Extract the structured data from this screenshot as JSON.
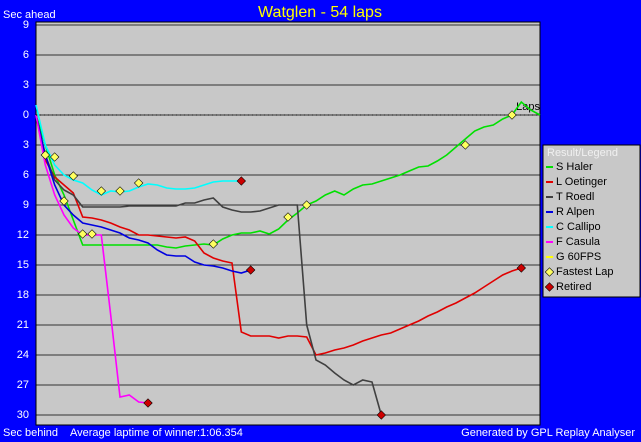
{
  "chart_data": {
    "type": "line",
    "title": "Watglen - 54 laps",
    "y_label_top": "Sec ahead",
    "y_label_bottom": "Sec behind",
    "x_label": "Laps",
    "footer_left": "Average laptime of winner:1:06.354",
    "footer_right": "Generated by GPL Replay Analyser",
    "legend_title": "Result/Legend",
    "xlim": [
      0,
      54
    ],
    "ylim": [
      -31,
      9.3
    ],
    "yticks": [
      9,
      6,
      3,
      0,
      {
        "value": -3,
        "label": "3"
      },
      {
        "value": -6,
        "label": "6"
      },
      {
        "value": -9,
        "label": "9"
      },
      {
        "value": -12,
        "label": "12"
      },
      {
        "value": -15,
        "label": "15"
      },
      {
        "value": -18,
        "label": "18"
      },
      {
        "value": -21,
        "label": "21"
      },
      {
        "value": -24,
        "label": "24"
      },
      {
        "value": -27,
        "label": "27"
      },
      {
        "value": -30,
        "label": "30"
      }
    ],
    "grid": true,
    "x": [
      0,
      1,
      2,
      3,
      4,
      5,
      6,
      7,
      8,
      9,
      10,
      11,
      12,
      13,
      14,
      15,
      16,
      17,
      18,
      19,
      20,
      21,
      22,
      23,
      24,
      25,
      26,
      27,
      28,
      29,
      30,
      31,
      32,
      33,
      34,
      35,
      36,
      37,
      38,
      39,
      40,
      41,
      42,
      43,
      44,
      45,
      46,
      47,
      48,
      49,
      50,
      51,
      52,
      53,
      54
    ],
    "series": [
      {
        "name": "S Haler",
        "color": "#00e000",
        "values": [
          0,
          -3,
          -6,
          -8,
          -10.5,
          -13,
          -13,
          -13,
          -13,
          -13,
          -13,
          -13,
          -13,
          -13,
          -13.2,
          -13.3,
          -13.1,
          -13,
          -12.9,
          -13,
          -12.4,
          -12,
          -11.8,
          -11.8,
          -11.6,
          -11.9,
          -11.4,
          -10.5,
          -9.8,
          -9,
          -8.6,
          -8,
          -7.6,
          -8,
          -7.4,
          -7,
          -6.9,
          -6.6,
          -6.3,
          -6,
          -5.6,
          -5.2,
          -5.1,
          -4.6,
          -4,
          -3.2,
          -2.4,
          -1.6,
          -1.2,
          -1,
          -0.4,
          0,
          1.3,
          0.5,
          0
        ]
      },
      {
        "name": "L Oetinger",
        "color": "#e00000",
        "values": [
          0,
          -4.5,
          -6.2,
          -7,
          -7.8,
          -10.2,
          -10.3,
          -10.5,
          -10.8,
          -11.2,
          -11.5,
          -12,
          -12,
          -12.1,
          -12.2,
          -12.3,
          -12.2,
          -12.6,
          -13.8,
          -14.3,
          -14.6,
          -14.8,
          -21.7,
          -22.1,
          -22.1,
          -22.1,
          -22.3,
          -22.1,
          -22.1,
          -22.2,
          -24,
          -23.8,
          -23.5,
          -23.3,
          -23,
          -22.6,
          -22.3,
          -22,
          -21.8,
          -21.4,
          -21,
          -20.6,
          -20.1,
          -19.7,
          -19.2,
          -18.8,
          -18.3,
          -17.8,
          -17.2,
          -16.6,
          -16,
          -15.6,
          -15.3,
          null,
          null
        ]
      },
      {
        "name": "T Roedl",
        "color": "#404040",
        "values": [
          0,
          -4,
          -6.5,
          -7.5,
          -8,
          -9.2,
          -9.2,
          -9.2,
          -9.2,
          -9.2,
          -9.1,
          -9.1,
          -9.1,
          -9.1,
          -9.1,
          -9.1,
          -8.8,
          -8.8,
          -8.5,
          -8.3,
          -9.2,
          -9.5,
          -9.7,
          -9.7,
          -9.6,
          -9.3,
          -9,
          -9,
          -9,
          -21,
          -24.5,
          -25,
          -25.8,
          -26.5,
          -27,
          -26.5,
          -26.7,
          -30,
          null,
          null,
          null,
          null,
          null,
          null,
          null,
          null,
          null,
          null,
          null,
          null,
          null,
          null,
          null,
          null,
          null
        ]
      },
      {
        "name": "R Alpen",
        "color": "#0000e0",
        "values": [
          0,
          -4,
          -7,
          -9,
          -10,
          -10.8,
          -11,
          -11.2,
          -11.5,
          -11.8,
          -12.3,
          -12.5,
          -12.8,
          -13.5,
          -14,
          -14.1,
          -14.1,
          -14.7,
          -15,
          -15.1,
          -15.3,
          -15.6,
          -15.8,
          -15.5,
          null,
          null,
          null,
          null,
          null,
          null,
          null,
          null,
          null,
          null,
          null,
          null,
          null,
          null,
          null,
          null,
          null,
          null,
          null,
          null,
          null,
          null,
          null,
          null,
          null,
          null,
          null,
          null,
          null,
          null,
          null
        ]
      },
      {
        "name": "C Callipo",
        "color": "#00ffff",
        "values": [
          1,
          -3,
          -5,
          -6,
          -6.5,
          -6.8,
          -7.5,
          -8,
          -7.6,
          -7.7,
          -7.6,
          -7.2,
          -6.9,
          -7,
          -7.3,
          -7.4,
          -7.4,
          -7.3,
          -7,
          -6.7,
          -6.6,
          -6.6,
          -6.6,
          null,
          null,
          null,
          null,
          null,
          null,
          null,
          null,
          null,
          null,
          null,
          null,
          null,
          null,
          null,
          null,
          null,
          null,
          null,
          null,
          null,
          null,
          null,
          null,
          null,
          null,
          null,
          null,
          null,
          null,
          null,
          null
        ]
      },
      {
        "name": "F Casula",
        "color": "#ff00ff",
        "values": [
          0,
          -5,
          -8,
          -10,
          -11.3,
          -12,
          -12,
          -12,
          -20,
          -28.2,
          -28,
          -28.7,
          -28.8,
          null,
          null,
          null,
          null,
          null,
          null,
          null,
          null,
          null,
          null,
          null,
          null,
          null,
          null,
          null,
          null,
          null,
          null,
          null,
          null,
          null,
          null,
          null,
          null,
          null,
          null,
          null,
          null,
          null,
          null,
          null,
          null,
          null,
          null,
          null,
          null,
          null,
          null,
          null,
          null,
          null,
          null
        ]
      },
      {
        "name": "G 60FPS",
        "color": "#ffff00",
        "values": [
          0,
          0,
          0,
          0,
          0,
          0,
          0,
          0,
          0,
          0,
          0,
          0,
          0,
          0,
          0,
          0,
          0,
          0,
          0,
          0,
          0,
          0,
          0,
          0,
          0,
          0,
          0,
          0,
          0,
          0,
          0,
          0,
          0,
          0,
          0,
          0,
          0,
          0,
          0,
          0,
          0,
          0,
          0,
          0,
          0,
          0,
          0,
          0,
          0,
          0,
          0,
          0,
          0,
          0,
          0
        ]
      }
    ],
    "fastest_laps": {
      "name": "Fastest Lap",
      "color": "#ffff60",
      "x": [
        1,
        2,
        3,
        4,
        5,
        6,
        7,
        9,
        11,
        19,
        27,
        29,
        46,
        51
      ],
      "y": [
        -4,
        -4.2,
        -8.6,
        -6.1,
        -11.9,
        -11.9,
        -7.6,
        -7.6,
        -6.8,
        -12.9,
        -10.2,
        -9,
        -3,
        0
      ]
    },
    "retired": {
      "name": "Retired",
      "color": "#cc0000",
      "x": [
        52,
        37,
        23,
        22,
        12
      ],
      "y": [
        -15.3,
        -30,
        -15.5,
        -6.6,
        -28.8
      ]
    }
  }
}
